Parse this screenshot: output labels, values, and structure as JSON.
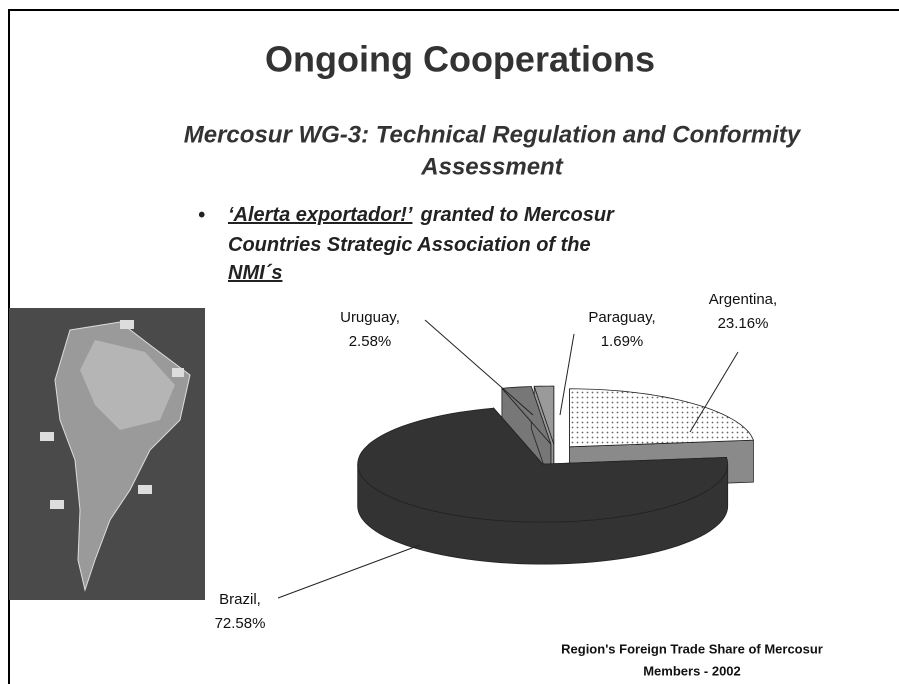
{
  "slide": {
    "title": "Ongoing Cooperations",
    "subtitle": [
      "Mercosur WG-3: Technical Regulation and Conformity",
      "Assessment"
    ],
    "bullet": [
      [
        "‘Alerta exportador!’",
        "granted to Mercosur"
      ],
      [
        "Countries Strategic  Association of the"
      ],
      [
        "NMI´s"
      ]
    ]
  },
  "chart_data": {
    "type": "pie3d",
    "title": [
      "Region's Foreign Trade Share of Mercosur",
      "Members - 2002"
    ],
    "categories": [
      "Argentina,",
      "Brazil,",
      "Uruguay,",
      "Paraguay,"
    ],
    "values": [
      23.16,
      72.58,
      2.58,
      1.69
    ],
    "value_labels": [
      "23.16%",
      "72.58%",
      "2.58%",
      "1.69%"
    ],
    "colors": [
      "url(#dots)",
      "#333333",
      "#777777",
      "#9a9a9a"
    ]
  }
}
